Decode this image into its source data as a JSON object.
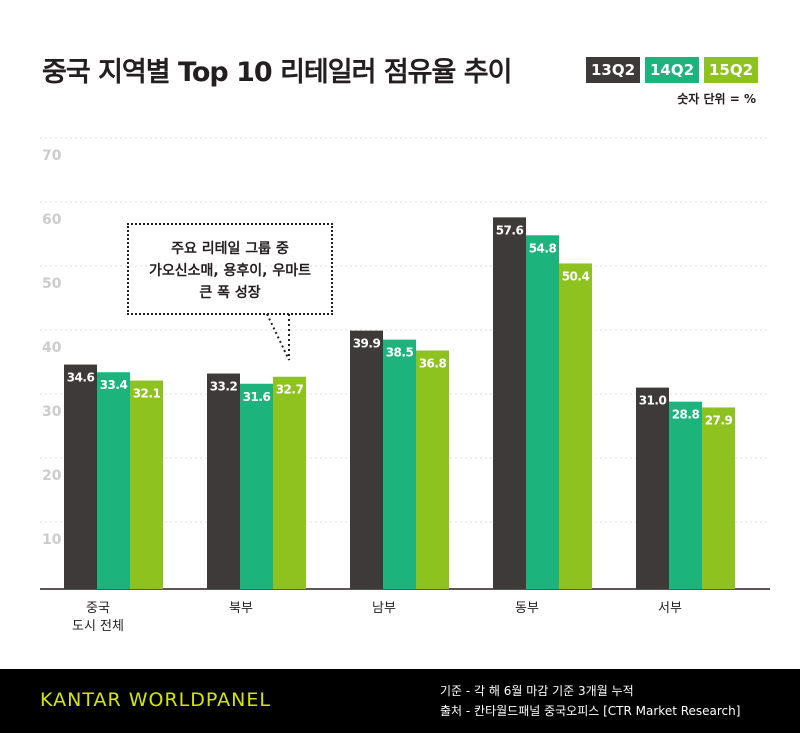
{
  "chart_data": {
    "type": "bar",
    "title": "중국 지역별 Top 10 리테일러 점유율 추이",
    "unit_note": "숫자 단위 = %",
    "categories": [
      "중국\n도시 전체",
      "북부",
      "남부",
      "동부",
      "서부"
    ],
    "series": [
      {
        "name": "13Q2",
        "color": "#3d3a39",
        "values": [
          34.6,
          33.2,
          39.9,
          57.6,
          31.0
        ]
      },
      {
        "name": "14Q2",
        "color": "#1db37d",
        "values": [
          33.4,
          31.6,
          38.5,
          54.8,
          28.8
        ]
      },
      {
        "name": "15Q2",
        "color": "#8dc21f",
        "values": [
          32.1,
          32.7,
          36.8,
          50.4,
          27.9
        ]
      }
    ],
    "yticks": [
      10,
      20,
      30,
      40,
      50,
      60,
      70
    ],
    "ylim": [
      0,
      70
    ],
    "grid": true,
    "legend": "top-right",
    "annotation": "주요 리테일 그룹 중\n가오신소매, 용후이, 우마트\n큰 폭 성장"
  },
  "footer": {
    "logo": "KANTAR WORLDPANEL",
    "basis": "기준 - 각 해 6월 마감 기준 3개월 누적",
    "source": "출처 - 칸타월드패널 중국오피스 [CTR Market Research]"
  }
}
